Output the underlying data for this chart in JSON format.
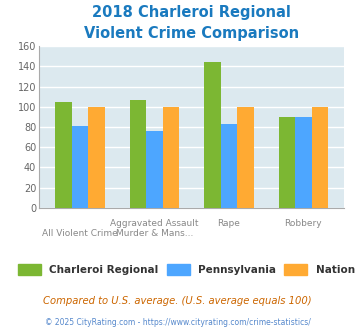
{
  "title": "2018 Charleroi Regional\nViolent Crime Comparison",
  "series": {
    "Charleroi Regional": [
      105,
      107,
      144,
      90
    ],
    "Pennsylvania": [
      81,
      76,
      83,
      90
    ],
    "National": [
      100,
      100,
      100,
      100
    ]
  },
  "colors": {
    "Charleroi Regional": "#7cb733",
    "Pennsylvania": "#4da6ff",
    "National": "#ffaa33"
  },
  "ylim": [
    0,
    160
  ],
  "yticks": [
    0,
    20,
    40,
    60,
    80,
    100,
    120,
    140,
    160
  ],
  "plot_bg": "#dce9ef",
  "grid_color": "#ffffff",
  "title_color": "#1a7abf",
  "footer_note": "Compared to U.S. average. (U.S. average equals 100)",
  "copyright": "© 2025 CityRating.com - https://www.cityrating.com/crime-statistics/",
  "bar_width": 0.22,
  "cat_line1": [
    "",
    "Aggravated Assault",
    "Rape",
    "Robbery"
  ],
  "cat_line2": [
    "All Violent Crime",
    "Murder & Mans...",
    "",
    ""
  ]
}
